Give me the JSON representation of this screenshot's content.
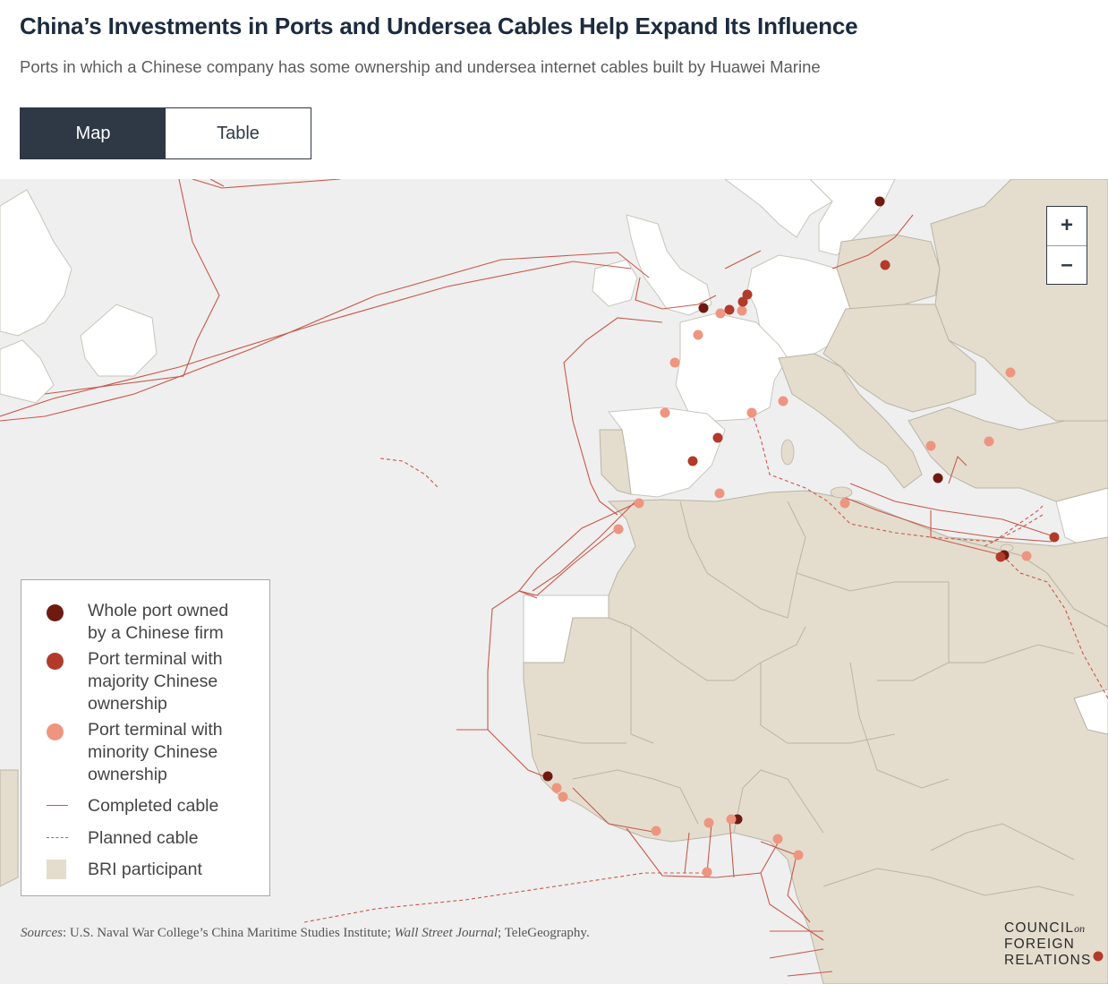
{
  "header": {
    "title": "China’s Investments in Ports and Undersea Cables Help Expand Its Influence",
    "subtitle": "Ports in which a Chinese company has some ownership and undersea internet cables built by Huawei Marine"
  },
  "tabs": [
    {
      "label": "Map",
      "active": true
    },
    {
      "label": "Table",
      "active": false
    }
  ],
  "zoom": {
    "in_label": "+",
    "out_label": "–"
  },
  "colors": {
    "ocean": "#efefef",
    "bri_land": "#e4ddcd",
    "other_land": "#ffffff",
    "border": "#b9b4a8",
    "cable": "#c8584a",
    "whole_port": "#6f1a10",
    "majority_port": "#b23a2a",
    "minority_port": "#ee9580"
  },
  "legend": {
    "items": [
      {
        "symbol": "dot-dark",
        "label": "Whole port owned\nby a Chinese firm"
      },
      {
        "symbol": "dot-mid",
        "label": "Port terminal with\nmajority Chinese\nownership"
      },
      {
        "symbol": "dot-light",
        "label": "Port terminal with\nminority Chinese\nownership"
      },
      {
        "symbol": "line-solid",
        "label": "Completed cable"
      },
      {
        "symbol": "line-dashed",
        "label": "Planned cable"
      },
      {
        "symbol": "square",
        "label": "BRI participant"
      }
    ]
  },
  "sources": {
    "prefix": "Sources",
    "text1": ": U.S. Naval War College’s China Maritime Studies Institute; ",
    "wsj": "Wall Street Journal",
    "text2": "; TeleGeography."
  },
  "logo": {
    "line1": "COUNCIL",
    "on": "on",
    "line2": "FOREIGN",
    "line3": "RELATIONS"
  }
}
